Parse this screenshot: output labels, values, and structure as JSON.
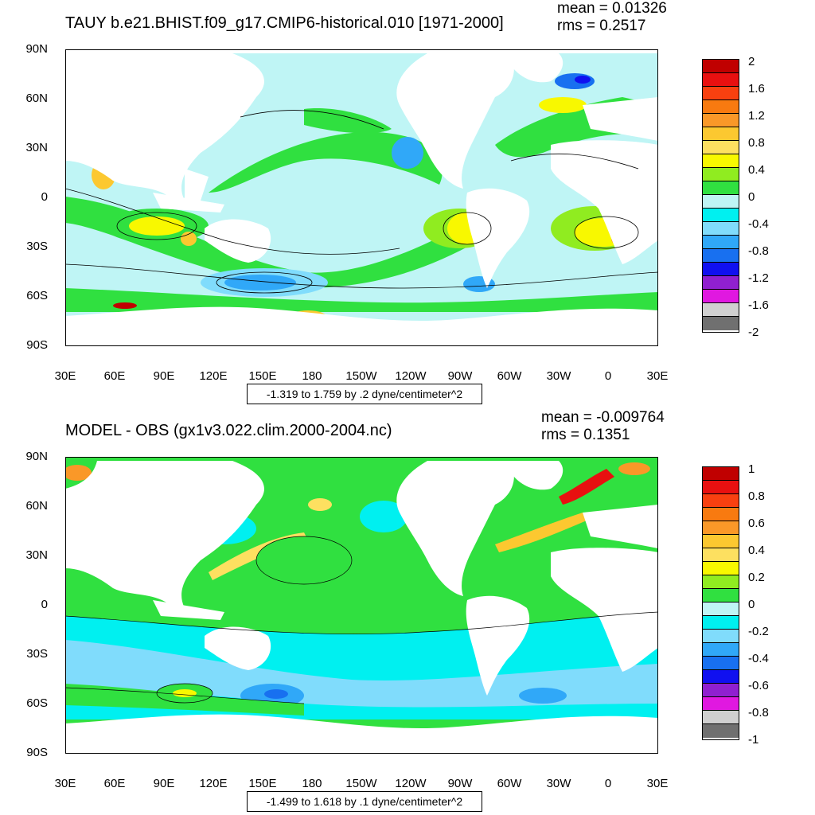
{
  "panels": [
    {
      "title": "TAUY b.e21.BHIST.f09_g17.CMIP6-historical.010 [1971-2000]",
      "mean_text": "mean = 0.01326",
      "rms_text": "rms = 0.2517",
      "range_text": "-1.319 to 1.759 by .2 dyne/centimeter^2",
      "colorbar_labels": [
        "2",
        "1.6",
        "1.2",
        "0.8",
        "0.4",
        "0",
        "-0.4",
        "-0.8",
        "-1.2",
        "-1.6",
        "-2"
      ]
    },
    {
      "title": "MODEL - OBS (gx1v3.022.clim.2000-2004.nc)",
      "mean_text": "mean = -0.009764",
      "rms_text": "rms = 0.1351",
      "range_text": "-1.499 to 1.618 by .1 dyne/centimeter^2",
      "colorbar_labels": [
        "1",
        "0.8",
        "0.6",
        "0.4",
        "0.2",
        "0",
        "-0.2",
        "-0.4",
        "-0.6",
        "-0.8",
        "-1"
      ]
    }
  ],
  "lat_labels": [
    "90N",
    "60N",
    "30N",
    "0",
    "30S",
    "60S",
    "90S"
  ],
  "lon_labels": [
    "30E",
    "60E",
    "90E",
    "120E",
    "150E",
    "180",
    "150W",
    "120W",
    "90W",
    "60W",
    "30W",
    "0",
    "30E"
  ],
  "colors": {
    "palette": [
      "#707070",
      "#d0d0d0",
      "#e018e0",
      "#9020d0",
      "#1010f0",
      "#1870f0",
      "#30a8f8",
      "#80dcfc",
      "#00f0f0",
      "#bff5f5",
      "#30e040",
      "#90ec20",
      "#f8f800",
      "#fde060",
      "#fcc830",
      "#fa9828",
      "#f87a10",
      "#f84010",
      "#e81010",
      "#c00000"
    ],
    "land": "#ffffff",
    "ocean_base": "#bff5f5"
  }
}
